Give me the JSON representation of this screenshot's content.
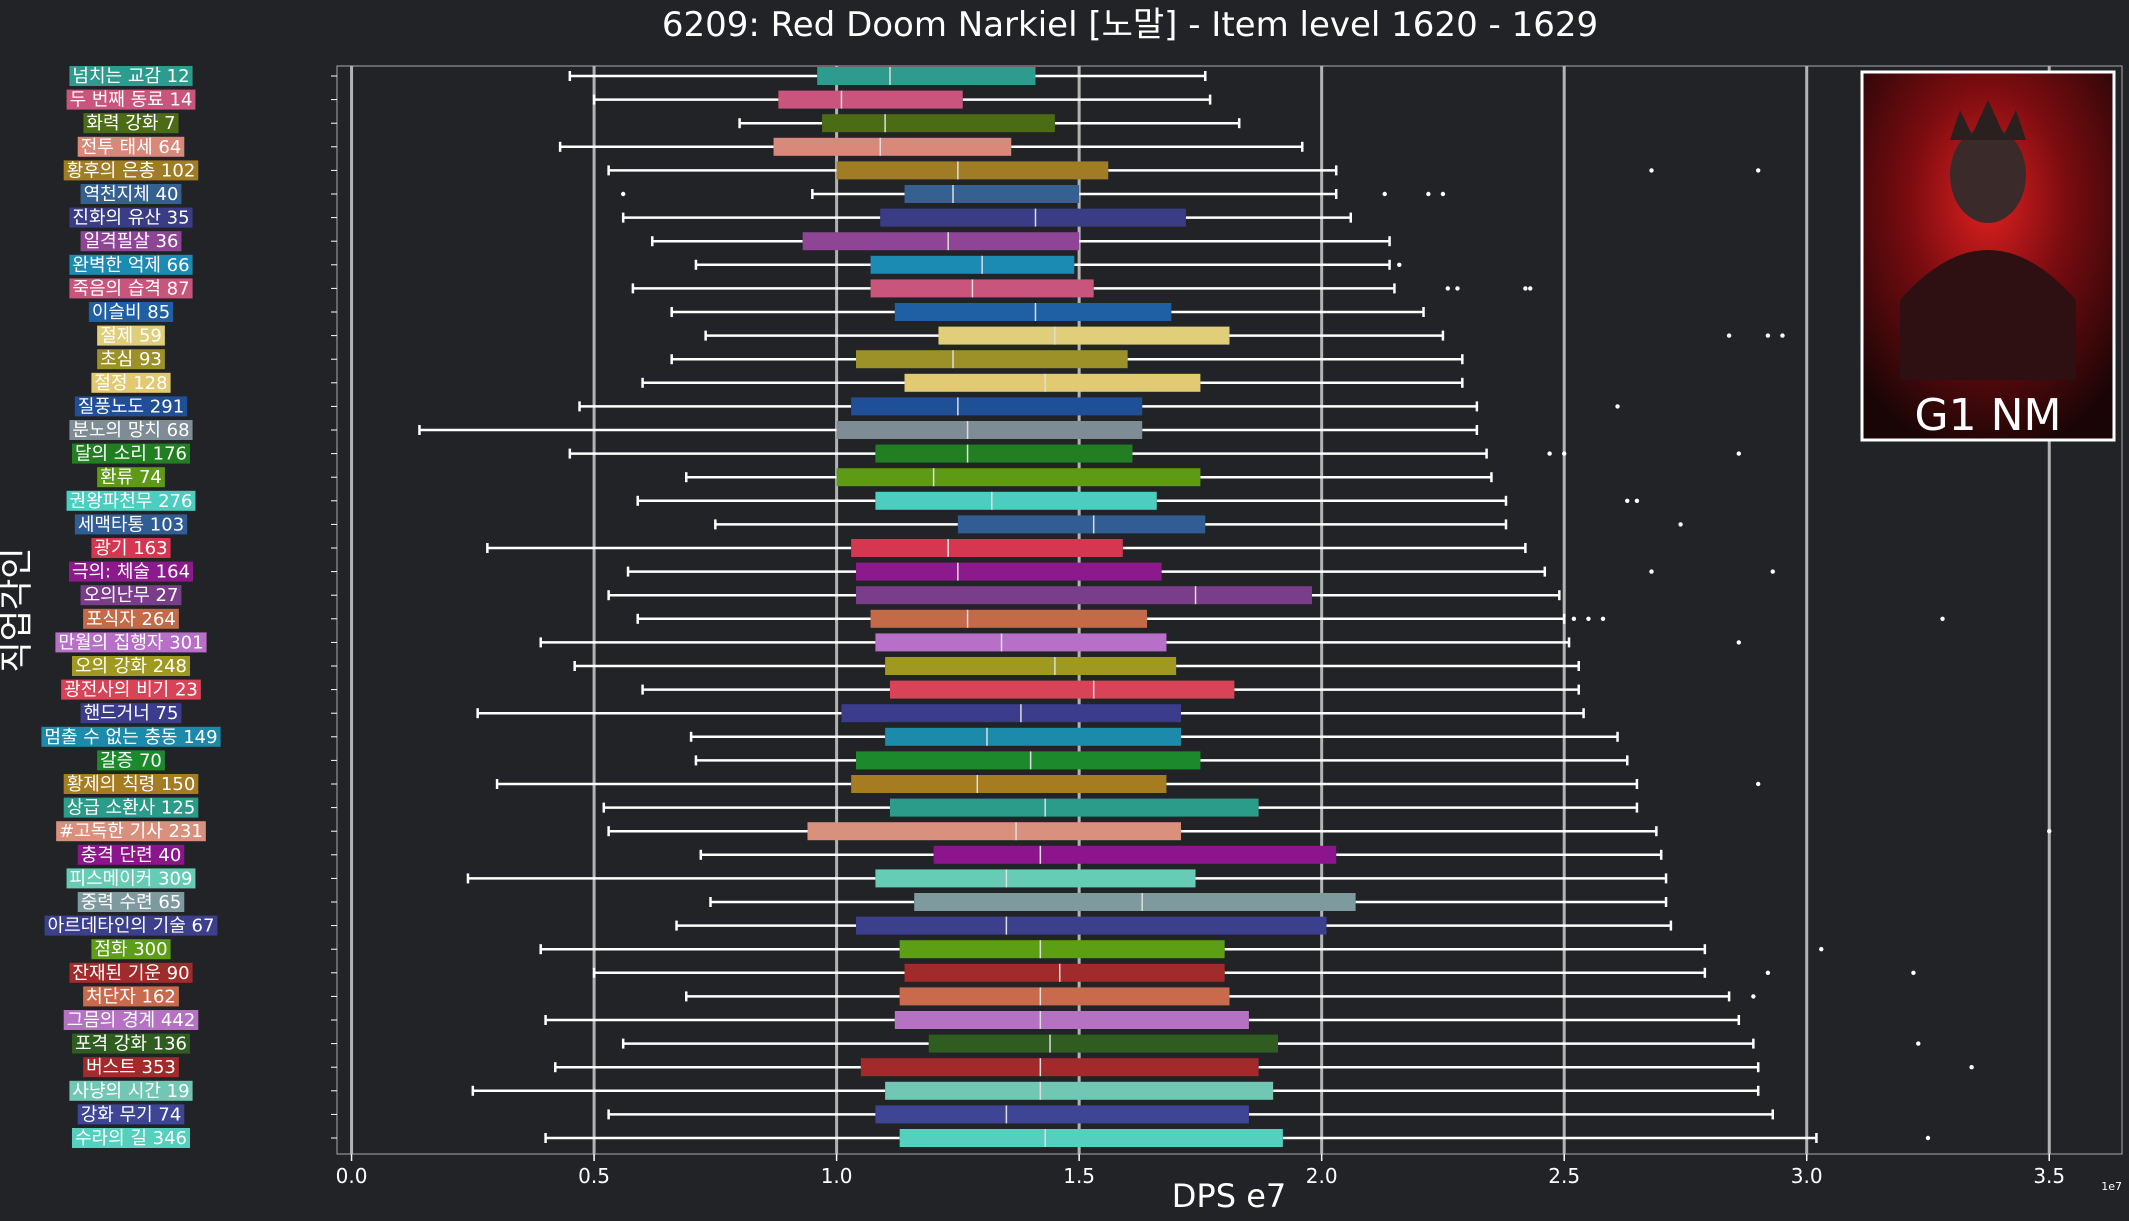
{
  "chart_data": {
    "type": "box",
    "title": "6209: Red Doom Narkiel [노말] - Item level 1620 - 1629",
    "xlabel": "DPS e7",
    "ylabel": "직업각인",
    "x_scale_note": "1e7",
    "xlim": [
      -0.03,
      3.65
    ],
    "xticks": [
      "0.0",
      "0.5",
      "1.0",
      "1.5",
      "2.0",
      "2.5",
      "3.0",
      "3.5"
    ],
    "xtick_values": [
      0,
      0.5,
      1.0,
      1.5,
      2.0,
      2.5,
      3.0,
      3.5
    ],
    "grid": "vertical",
    "badge_text": "G1 NM",
    "boxes": [
      {
        "label": "넘치는 교감 12",
        "color": "#2e9b8f",
        "whislo": 0.45,
        "q1": 0.96,
        "med": 1.11,
        "q3": 1.41,
        "whishi": 1.76,
        "fliers": []
      },
      {
        "label": "두 번째 동료 14",
        "color": "#c9547c",
        "whislo": 0.5,
        "q1": 0.88,
        "med": 1.01,
        "q3": 1.26,
        "whishi": 1.77,
        "fliers": []
      },
      {
        "label": "화력 강화 7",
        "color": "#4c6b16",
        "whislo": 0.8,
        "q1": 0.97,
        "med": 1.1,
        "q3": 1.45,
        "whishi": 1.83,
        "fliers": []
      },
      {
        "label": "전투 태세 64",
        "color": "#d9897a",
        "whislo": 0.43,
        "q1": 0.87,
        "med": 1.09,
        "q3": 1.36,
        "whishi": 1.96,
        "fliers": []
      },
      {
        "label": "황후의 은총 102",
        "color": "#a07d24",
        "whislo": 0.53,
        "q1": 1.0,
        "med": 1.25,
        "q3": 1.56,
        "whishi": 2.03,
        "fliers": [
          2.68,
          2.9
        ]
      },
      {
        "label": "역천지체 40",
        "color": "#35608f",
        "whislo": 0.95,
        "q1": 1.14,
        "med": 1.24,
        "q3": 1.5,
        "whishi": 2.03,
        "fliers": [
          0.56,
          2.13,
          2.22,
          2.25
        ]
      },
      {
        "label": "진화의 유산 35",
        "color": "#3a3d86",
        "whislo": 0.56,
        "q1": 1.09,
        "med": 1.41,
        "q3": 1.72,
        "whishi": 2.06,
        "fliers": []
      },
      {
        "label": "일격필살 36",
        "color": "#8e4596",
        "whislo": 0.62,
        "q1": 0.93,
        "med": 1.23,
        "q3": 1.5,
        "whishi": 2.14,
        "fliers": []
      },
      {
        "label": "완벽한 억제 66",
        "color": "#1b8bb4",
        "whislo": 0.71,
        "q1": 1.07,
        "med": 1.3,
        "q3": 1.49,
        "whishi": 2.14,
        "fliers": [
          2.16
        ]
      },
      {
        "label": "죽음의 습격 87",
        "color": "#c9547c",
        "whislo": 0.58,
        "q1": 1.07,
        "med": 1.28,
        "q3": 1.53,
        "whishi": 2.15,
        "fliers": [
          2.26,
          2.28,
          2.42,
          2.43
        ]
      },
      {
        "label": "이슬비 85",
        "color": "#1f5fa3",
        "whislo": 0.66,
        "q1": 1.12,
        "med": 1.41,
        "q3": 1.69,
        "whishi": 2.21,
        "fliers": []
      },
      {
        "label": "절제 59",
        "color": "#e0ce7a",
        "whislo": 0.73,
        "q1": 1.21,
        "med": 1.45,
        "q3": 1.81,
        "whishi": 2.25,
        "fliers": [
          2.84,
          2.92,
          2.95
        ]
      },
      {
        "label": "초심 93",
        "color": "#9b9128",
        "whislo": 0.66,
        "q1": 1.04,
        "med": 1.24,
        "q3": 1.6,
        "whishi": 2.29,
        "fliers": []
      },
      {
        "label": "절정 128",
        "color": "#e2ca72",
        "whislo": 0.6,
        "q1": 1.14,
        "med": 1.43,
        "q3": 1.75,
        "whishi": 2.29,
        "fliers": []
      },
      {
        "label": "질풍노도 291",
        "color": "#1f4f96",
        "whislo": 0.47,
        "q1": 1.03,
        "med": 1.25,
        "q3": 1.63,
        "whishi": 2.32,
        "fliers": [
          2.61
        ]
      },
      {
        "label": "분노의 망치 68",
        "color": "#7d8c95",
        "whislo": 0.14,
        "q1": 1.0,
        "med": 1.27,
        "q3": 1.63,
        "whishi": 2.32,
        "fliers": []
      },
      {
        "label": "달의 소리 176",
        "color": "#217f21",
        "whislo": 0.45,
        "q1": 1.08,
        "med": 1.27,
        "q3": 1.61,
        "whishi": 2.34,
        "fliers": [
          2.47,
          2.5,
          2.86
        ]
      },
      {
        "label": "환류 74",
        "color": "#5f9a17",
        "whislo": 0.69,
        "q1": 1.0,
        "med": 1.2,
        "q3": 1.75,
        "whishi": 2.35,
        "fliers": []
      },
      {
        "label": "권왕파천무 276",
        "color": "#4ccdbf",
        "whislo": 0.59,
        "q1": 1.08,
        "med": 1.32,
        "q3": 1.66,
        "whishi": 2.38,
        "fliers": [
          2.63,
          2.65
        ]
      },
      {
        "label": "세맥타통 103",
        "color": "#2f5d94",
        "whislo": 0.75,
        "q1": 1.25,
        "med": 1.53,
        "q3": 1.76,
        "whishi": 2.38,
        "fliers": [
          2.74
        ]
      },
      {
        "label": "광기 163",
        "color": "#d4374f",
        "whislo": 0.28,
        "q1": 1.03,
        "med": 1.23,
        "q3": 1.59,
        "whishi": 2.42,
        "fliers": []
      },
      {
        "label": "극의: 체술 164",
        "color": "#8c1a8c",
        "whislo": 0.57,
        "q1": 1.04,
        "med": 1.25,
        "q3": 1.67,
        "whishi": 2.46,
        "fliers": [
          2.68,
          2.93
        ]
      },
      {
        "label": "오의난무 27",
        "color": "#7a3d8a",
        "whislo": 0.53,
        "q1": 1.04,
        "med": 1.74,
        "q3": 1.98,
        "whishi": 2.49,
        "fliers": []
      },
      {
        "label": "포식자 264",
        "color": "#c46a48",
        "whislo": 0.59,
        "q1": 1.07,
        "med": 1.27,
        "q3": 1.64,
        "whishi": 2.5,
        "fliers": [
          2.52,
          2.55,
          2.58,
          3.28
        ]
      },
      {
        "label": "만월의 집행자 301",
        "color": "#b76fc7",
        "whislo": 0.39,
        "q1": 1.08,
        "med": 1.34,
        "q3": 1.68,
        "whishi": 2.51,
        "fliers": [
          2.86
        ]
      },
      {
        "label": "오의 강화 248",
        "color": "#a0991f",
        "whislo": 0.46,
        "q1": 1.1,
        "med": 1.45,
        "q3": 1.7,
        "whishi": 2.53,
        "fliers": []
      },
      {
        "label": "광전사의 비기 23",
        "color": "#d94358",
        "whislo": 0.6,
        "q1": 1.11,
        "med": 1.53,
        "q3": 1.82,
        "whishi": 2.53,
        "fliers": []
      },
      {
        "label": "핸드거너 75",
        "color": "#3c3c8c",
        "whislo": 0.26,
        "q1": 1.01,
        "med": 1.38,
        "q3": 1.71,
        "whishi": 2.54,
        "fliers": []
      },
      {
        "label": "멈출 수 없는 충동 149",
        "color": "#1c8aaa",
        "whislo": 0.7,
        "q1": 1.1,
        "med": 1.31,
        "q3": 1.71,
        "whishi": 2.61,
        "fliers": []
      },
      {
        "label": "갈증 70",
        "color": "#1c8a2c",
        "whislo": 0.71,
        "q1": 1.04,
        "med": 1.4,
        "q3": 1.75,
        "whishi": 2.63,
        "fliers": []
      },
      {
        "label": "황제의 칙령 150",
        "color": "#a57c20",
        "whislo": 0.3,
        "q1": 1.03,
        "med": 1.29,
        "q3": 1.68,
        "whishi": 2.65,
        "fliers": [
          2.9
        ]
      },
      {
        "label": "상급 소환사 125",
        "color": "#2c9c8a",
        "whislo": 0.52,
        "q1": 1.11,
        "med": 1.43,
        "q3": 1.87,
        "whishi": 2.65,
        "fliers": []
      },
      {
        "label": "#고독한 기사 231",
        "color": "#d9917e",
        "whislo": 0.53,
        "q1": 0.94,
        "med": 1.37,
        "q3": 1.71,
        "whishi": 2.69,
        "fliers": [
          3.5
        ]
      },
      {
        "label": "충격 단련 40",
        "color": "#8c148c",
        "whislo": 0.72,
        "q1": 1.2,
        "med": 1.42,
        "q3": 2.03,
        "whishi": 2.7,
        "fliers": []
      },
      {
        "label": "피스메이커 309",
        "color": "#66ccb5",
        "whislo": 0.24,
        "q1": 1.08,
        "med": 1.35,
        "q3": 1.74,
        "whishi": 2.71,
        "fliers": []
      },
      {
        "label": "중력 수련 65",
        "color": "#7f9a9f",
        "whislo": 0.74,
        "q1": 1.16,
        "med": 1.63,
        "q3": 2.07,
        "whishi": 2.71,
        "fliers": []
      },
      {
        "label": "아르데타인의 기술 67",
        "color": "#3c3f8c",
        "whislo": 0.67,
        "q1": 1.04,
        "med": 1.35,
        "q3": 2.01,
        "whishi": 2.72,
        "fliers": []
      },
      {
        "label": "점화 300",
        "color": "#5d9e17",
        "whislo": 0.39,
        "q1": 1.13,
        "med": 1.42,
        "q3": 1.8,
        "whishi": 2.79,
        "fliers": [
          3.03
        ]
      },
      {
        "label": "잔재된 기운 90",
        "color": "#a12a2a",
        "whislo": 0.5,
        "q1": 1.14,
        "med": 1.46,
        "q3": 1.8,
        "whishi": 2.79,
        "fliers": [
          2.92,
          3.22
        ]
      },
      {
        "label": "처단자 162",
        "color": "#c96a4d",
        "whislo": 0.69,
        "q1": 1.13,
        "med": 1.42,
        "q3": 1.81,
        "whishi": 2.84,
        "fliers": [
          2.89
        ]
      },
      {
        "label": "그믐의 경계 442",
        "color": "#b572c2",
        "whislo": 0.4,
        "q1": 1.12,
        "med": 1.42,
        "q3": 1.85,
        "whishi": 2.86,
        "fliers": []
      },
      {
        "label": "포격 강화 136",
        "color": "#2f5c1f",
        "whislo": 0.56,
        "q1": 1.19,
        "med": 1.44,
        "q3": 1.91,
        "whishi": 2.89,
        "fliers": [
          3.23
        ]
      },
      {
        "label": "버스트 353",
        "color": "#a3292a",
        "whislo": 0.42,
        "q1": 1.05,
        "med": 1.42,
        "q3": 1.87,
        "whishi": 2.9,
        "fliers": [
          3.34
        ]
      },
      {
        "label": "사냥의 시간 19",
        "color": "#72c7b4",
        "whislo": 0.25,
        "q1": 1.1,
        "med": 1.42,
        "q3": 1.9,
        "whishi": 2.9,
        "fliers": []
      },
      {
        "label": "강화 무기 74",
        "color": "#3e4594",
        "whislo": 0.53,
        "q1": 1.08,
        "med": 1.35,
        "q3": 1.85,
        "whishi": 2.93,
        "fliers": []
      },
      {
        "label": "수라의 길 346",
        "color": "#55d0be",
        "whislo": 0.4,
        "q1": 1.13,
        "med": 1.43,
        "q3": 1.92,
        "whishi": 3.02,
        "fliers": [
          3.25
        ]
      }
    ]
  }
}
